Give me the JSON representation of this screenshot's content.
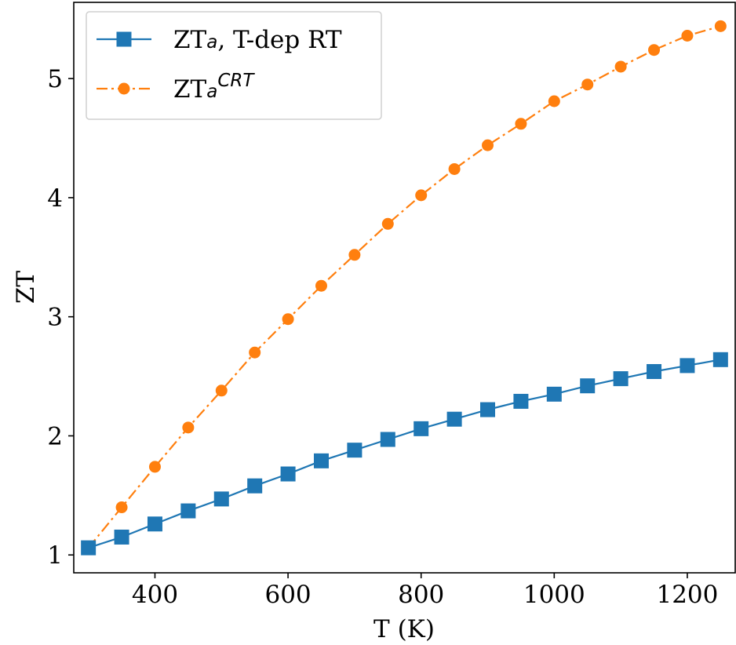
{
  "chart_data": {
    "type": "line",
    "xlabel": "T (K)",
    "ylabel": "ZT",
    "xlim": [
      278,
      1272
    ],
    "ylim": [
      0.85,
      5.64
    ],
    "xticks": [
      400,
      600,
      800,
      1000,
      1200
    ],
    "yticks": [
      1,
      2,
      3,
      4,
      5
    ],
    "grid": false,
    "legend_position": "top-left",
    "x": [
      300,
      350,
      400,
      450,
      500,
      550,
      600,
      650,
      700,
      750,
      800,
      850,
      900,
      950,
      1000,
      1050,
      1100,
      1150,
      1200,
      1250
    ],
    "series": [
      {
        "name": "ZT_a, T-dep RT",
        "legend": {
          "main": "ZT",
          "sub": "a",
          "sup": "",
          "rest": ", T-dep RT"
        },
        "color": "#1f77b4",
        "marker": "square",
        "linestyle": "solid",
        "values": [
          1.06,
          1.15,
          1.26,
          1.37,
          1.47,
          1.58,
          1.68,
          1.79,
          1.88,
          1.97,
          2.06,
          2.14,
          2.22,
          2.29,
          2.35,
          2.42,
          2.48,
          2.54,
          2.59,
          2.64
        ]
      },
      {
        "name": "ZT_a^CRT",
        "legend": {
          "main": "ZT",
          "sub": "a",
          "sup": "CRT",
          "rest": ""
        },
        "color": "#ff7f0e",
        "marker": "circle",
        "linestyle": "dashdot",
        "values": [
          1.06,
          1.4,
          1.74,
          2.07,
          2.38,
          2.7,
          2.98,
          3.26,
          3.52,
          3.78,
          4.02,
          4.24,
          4.44,
          4.62,
          4.81,
          4.95,
          5.1,
          5.24,
          5.36,
          5.44
        ]
      }
    ]
  }
}
